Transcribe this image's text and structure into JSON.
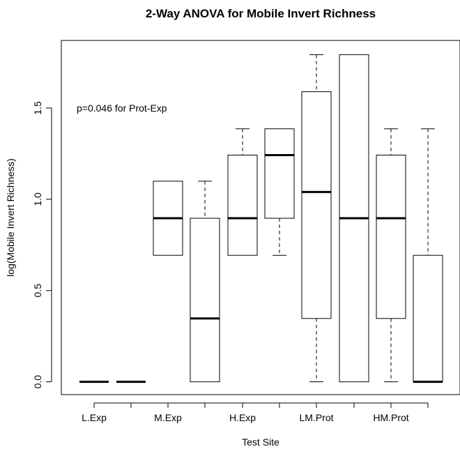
{
  "chart_data": {
    "type": "boxplot",
    "title": "2-Way ANOVA for Mobile Invert Richness",
    "xlabel": "Test Site",
    "ylabel": "log(Mobile Invert Richness)",
    "ylim": [
      -0.07,
      1.87
    ],
    "yticks": [
      "0.0",
      "0.5",
      "1.0",
      "1.5"
    ],
    "ytick_values": [
      0,
      0.5,
      1.0,
      1.5
    ],
    "x_tick_labels": [
      "L.Exp",
      "M.Exp",
      "H.Exp",
      "LM.Prot",
      "HM.Prot"
    ],
    "annotation": "p=0.046 for Prot-Exp",
    "boxes": [
      {
        "whisker_low": 0,
        "q1": 0,
        "median": 0,
        "q3": 0,
        "whisker_high": 0
      },
      {
        "whisker_low": 0,
        "q1": 0,
        "median": 0,
        "q3": 0,
        "whisker_high": 0
      },
      {
        "whisker_low": 0.693,
        "q1": 0.693,
        "median": 0.896,
        "q3": 1.099,
        "whisker_high": 1.099
      },
      {
        "whisker_low": 0,
        "q1": 0,
        "median": 0.347,
        "q3": 0.896,
        "whisker_high": 1.099
      },
      {
        "whisker_low": 0.693,
        "q1": 0.693,
        "median": 0.896,
        "q3": 1.242,
        "whisker_high": 1.386
      },
      {
        "whisker_low": 0.693,
        "q1": 0.896,
        "median": 1.242,
        "q3": 1.386,
        "whisker_high": 1.386
      },
      {
        "whisker_low": 0,
        "q1": 0.347,
        "median": 1.04,
        "q3": 1.589,
        "whisker_high": 1.792
      },
      {
        "whisker_low": 0,
        "q1": 0,
        "median": 0.896,
        "q3": 1.792,
        "whisker_high": 1.792
      },
      {
        "whisker_low": 0,
        "q1": 0.347,
        "median": 0.896,
        "q3": 1.242,
        "whisker_high": 1.386
      },
      {
        "whisker_low": 0,
        "q1": 0,
        "median": 0,
        "q3": 0.693,
        "whisker_high": 1.386
      }
    ]
  }
}
